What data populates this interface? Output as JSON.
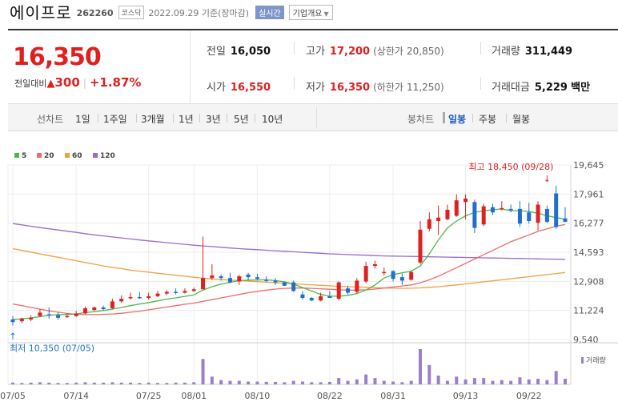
{
  "header": {
    "name": "에이프로",
    "code": "262260",
    "market": "코스닥",
    "date": "2022.09.29 기준(장마감)",
    "realtime": "실시간",
    "company_btn": "기업개요",
    "company_arrow": "▼"
  },
  "quote": {
    "price": "16,350",
    "change_label": "전일대비",
    "change_icon": "▲",
    "change_amount": "300",
    "change_pct": "+1.87%",
    "prev_label": "전일",
    "prev": "16,050",
    "open_label": "시가",
    "open": "16,550",
    "high_label": "고가",
    "high": "17,200",
    "upper_limit_label": "(상한가",
    "upper_limit": "20,850)",
    "low_label": "저가",
    "low": "16,350",
    "lower_limit_label": "(하한가",
    "lower_limit": "11,250)",
    "volume_label": "거래량",
    "volume": "311,449",
    "amount_label": "거래대금",
    "amount": "5,229",
    "amount_unit": "백만"
  },
  "toolbar": {
    "line_label": "선차트",
    "periods": [
      "1일",
      "1주일",
      "3개월",
      "1년",
      "3년",
      "5년",
      "10년"
    ],
    "candle_label": "봉차트",
    "candle_periods": [
      "일봉",
      "주봉",
      "월봉"
    ],
    "active_candle": "일봉"
  },
  "colors": {
    "up": "#e02020",
    "down": "#1f6fd1",
    "ma5": "#4cb84c",
    "ma20": "#f06a6a",
    "ma60": "#f2a040",
    "ma120": "#9a6ad0",
    "volume": "#9b7fcc"
  },
  "chart_data": {
    "type": "candlestick",
    "legend": [
      {
        "name": "5",
        "color": "#4cb84c"
      },
      {
        "name": "20",
        "color": "#f06a6a"
      },
      {
        "name": "60",
        "color": "#f2a040"
      },
      {
        "name": "120",
        "color": "#9a6ad0"
      }
    ],
    "ylim": [
      9540,
      19645
    ],
    "y_ticks": [
      19645,
      17961,
      16277,
      14593,
      12908,
      11224,
      9540
    ],
    "y_tick_labels": [
      "19,645",
      "17,961",
      "16,277",
      "14,593",
      "12,908",
      "11,224",
      "9,540"
    ],
    "x_labels": [
      {
        "i": 0,
        "label": "07/05"
      },
      {
        "i": 7,
        "label": "07/14"
      },
      {
        "i": 15,
        "label": "07/25"
      },
      {
        "i": 20,
        "label": "08/01"
      },
      {
        "i": 27,
        "label": "08/10"
      },
      {
        "i": 35,
        "label": "08/22"
      },
      {
        "i": 42,
        "label": "08/31"
      },
      {
        "i": 50,
        "label": "09/13"
      },
      {
        "i": 57,
        "label": "09/22"
      }
    ],
    "candles": [
      {
        "o": 10700,
        "h": 10900,
        "l": 10350,
        "c": 10550
      },
      {
        "o": 10600,
        "h": 10800,
        "l": 10500,
        "c": 10750
      },
      {
        "o": 10700,
        "h": 10950,
        "l": 10600,
        "c": 10800
      },
      {
        "o": 10900,
        "h": 11300,
        "l": 10850,
        "c": 11100
      },
      {
        "o": 11000,
        "h": 11400,
        "l": 10750,
        "c": 10950
      },
      {
        "o": 10950,
        "h": 11100,
        "l": 10700,
        "c": 10800
      },
      {
        "o": 10850,
        "h": 11050,
        "l": 10800,
        "c": 10900
      },
      {
        "o": 10900,
        "h": 11200,
        "l": 10850,
        "c": 11050
      },
      {
        "o": 11050,
        "h": 11450,
        "l": 11000,
        "c": 11350
      },
      {
        "o": 11250,
        "h": 11450,
        "l": 11200,
        "c": 11400
      },
      {
        "o": 11400,
        "h": 11500,
        "l": 11250,
        "c": 11300
      },
      {
        "o": 11350,
        "h": 11900,
        "l": 11300,
        "c": 11750
      },
      {
        "o": 11750,
        "h": 12100,
        "l": 11650,
        "c": 11900
      },
      {
        "o": 11950,
        "h": 12250,
        "l": 11850,
        "c": 12000
      },
      {
        "o": 12000,
        "h": 12300,
        "l": 11900,
        "c": 11950
      },
      {
        "o": 11950,
        "h": 12250,
        "l": 11850,
        "c": 12050
      },
      {
        "o": 12050,
        "h": 12350,
        "l": 12000,
        "c": 12200
      },
      {
        "o": 12200,
        "h": 12400,
        "l": 12100,
        "c": 12300
      },
      {
        "o": 12300,
        "h": 12500,
        "l": 12150,
        "c": 12250
      },
      {
        "o": 12250,
        "h": 12500,
        "l": 12200,
        "c": 12350
      },
      {
        "o": 12350,
        "h": 12550,
        "l": 12300,
        "c": 12450
      },
      {
        "o": 12450,
        "h": 15500,
        "l": 12450,
        "c": 13100
      },
      {
        "o": 13100,
        "h": 13900,
        "l": 13000,
        "c": 13250
      },
      {
        "o": 13200,
        "h": 13300,
        "l": 12950,
        "c": 13100
      },
      {
        "o": 13100,
        "h": 13400,
        "l": 12800,
        "c": 12850
      },
      {
        "o": 12900,
        "h": 13300,
        "l": 12700,
        "c": 13200
      },
      {
        "o": 13300,
        "h": 13400,
        "l": 13000,
        "c": 13150
      },
      {
        "o": 13150,
        "h": 13350,
        "l": 12950,
        "c": 13050
      },
      {
        "o": 13000,
        "h": 13200,
        "l": 12850,
        "c": 12950
      },
      {
        "o": 12950,
        "h": 13100,
        "l": 12700,
        "c": 12850
      },
      {
        "o": 12850,
        "h": 12900,
        "l": 12700,
        "c": 12650
      },
      {
        "o": 12850,
        "h": 12950,
        "l": 12300,
        "c": 12350
      },
      {
        "o": 12150,
        "h": 12350,
        "l": 11850,
        "c": 11950
      },
      {
        "o": 11950,
        "h": 12000,
        "l": 11750,
        "c": 11800
      },
      {
        "o": 11800,
        "h": 12250,
        "l": 11750,
        "c": 12050
      },
      {
        "o": 12050,
        "h": 12350,
        "l": 11950,
        "c": 11950
      },
      {
        "o": 11900,
        "h": 12900,
        "l": 11800,
        "c": 12850
      },
      {
        "o": 12500,
        "h": 12650,
        "l": 12150,
        "c": 12250
      },
      {
        "o": 12300,
        "h": 13100,
        "l": 12200,
        "c": 12950
      },
      {
        "o": 12900,
        "h": 14050,
        "l": 12800,
        "c": 13800
      },
      {
        "o": 13800,
        "h": 14100,
        "l": 13650,
        "c": 13900
      },
      {
        "o": 13450,
        "h": 13700,
        "l": 13250,
        "c": 13450
      },
      {
        "o": 13500,
        "h": 13550,
        "l": 12900,
        "c": 13050
      },
      {
        "o": 13150,
        "h": 13350,
        "l": 12700,
        "c": 12950
      },
      {
        "o": 13000,
        "h": 13500,
        "l": 12950,
        "c": 13450
      },
      {
        "o": 14000,
        "h": 16400,
        "l": 13900,
        "c": 15900
      },
      {
        "o": 15950,
        "h": 16900,
        "l": 15800,
        "c": 16500
      },
      {
        "o": 16400,
        "h": 17300,
        "l": 15600,
        "c": 16600
      },
      {
        "o": 16500,
        "h": 17350,
        "l": 16450,
        "c": 17050
      },
      {
        "o": 16700,
        "h": 17950,
        "l": 16650,
        "c": 17600
      },
      {
        "o": 17500,
        "h": 17950,
        "l": 16500,
        "c": 17700
      },
      {
        "o": 17500,
        "h": 17650,
        "l": 15700,
        "c": 16000
      },
      {
        "o": 16200,
        "h": 17400,
        "l": 16100,
        "c": 17250
      },
      {
        "o": 17200,
        "h": 17400,
        "l": 16750,
        "c": 16900
      },
      {
        "o": 17150,
        "h": 17550,
        "l": 17000,
        "c": 17150
      },
      {
        "o": 17100,
        "h": 17350,
        "l": 16900,
        "c": 17050
      },
      {
        "o": 17100,
        "h": 17550,
        "l": 16050,
        "c": 16250
      },
      {
        "o": 16900,
        "h": 17450,
        "l": 16250,
        "c": 16400
      },
      {
        "o": 16300,
        "h": 17550,
        "l": 15850,
        "c": 17350
      },
      {
        "o": 17100,
        "h": 17300,
        "l": 16300,
        "c": 16350
      },
      {
        "o": 18000,
        "h": 18450,
        "l": 15950,
        "c": 16050
      },
      {
        "o": 16550,
        "h": 17200,
        "l": 16350,
        "c": 16350
      }
    ],
    "ma5": [
      10700,
      10740,
      10790,
      10860,
      10950,
      10980,
      10990,
      11020,
      11100,
      11160,
      11220,
      11300,
      11400,
      11500,
      11600,
      11680,
      11780,
      11880,
      11950,
      12040,
      12120,
      12400,
      12600,
      12750,
      12850,
      12950,
      12980,
      12990,
      13000,
      12950,
      12880,
      12750,
      12550,
      12350,
      12150,
      12050,
      12050,
      12100,
      12200,
      12400,
      12700,
      13100,
      13300,
      13400,
      13500,
      13800,
      14500,
      15300,
      16000,
      16400,
      16700,
      16900,
      17000,
      17050,
      17100,
      17000,
      17000,
      16950,
      16850,
      16700,
      16600,
      16500
    ],
    "ma20": [
      11600,
      11500,
      11400,
      11300,
      11200,
      11120,
      11050,
      11000,
      10980,
      10980,
      11000,
      11020,
      11060,
      11120,
      11180,
      11260,
      11340,
      11420,
      11500,
      11580,
      11650,
      11750,
      11850,
      11950,
      12050,
      12150,
      12250,
      12330,
      12400,
      12460,
      12500,
      12520,
      12520,
      12500,
      12480,
      12450,
      12420,
      12400,
      12400,
      12420,
      12460,
      12520,
      12580,
      12640,
      12700,
      12820,
      13000,
      13200,
      13450,
      13700,
      13950,
      14200,
      14450,
      14700,
      14950,
      15200,
      15400,
      15600,
      15800,
      15950,
      16100,
      16200
    ],
    "ma60": [
      14800,
      14700,
      14600,
      14500,
      14400,
      14300,
      14200,
      14100,
      14000,
      13900,
      13800,
      13720,
      13640,
      13560,
      13500,
      13440,
      13380,
      13320,
      13260,
      13200,
      13140,
      13090,
      13050,
      13010,
      12980,
      12950,
      12920,
      12890,
      12860,
      12830,
      12800,
      12770,
      12740,
      12710,
      12680,
      12650,
      12620,
      12600,
      12580,
      12560,
      12540,
      12520,
      12510,
      12500,
      12510,
      12530,
      12560,
      12600,
      12650,
      12700,
      12760,
      12820,
      12880,
      12940,
      13000,
      13060,
      13120,
      13180,
      13240,
      13300,
      13360,
      13420
    ],
    "ma120": [
      16250,
      16180,
      16100,
      16020,
      15950,
      15880,
      15810,
      15740,
      15670,
      15600,
      15540,
      15480,
      15420,
      15360,
      15300,
      15250,
      15200,
      15150,
      15100,
      15050,
      15000,
      14960,
      14920,
      14880,
      14840,
      14800,
      14770,
      14740,
      14710,
      14680,
      14650,
      14620,
      14590,
      14560,
      14530,
      14500,
      14480,
      14460,
      14440,
      14420,
      14400,
      14380,
      14370,
      14360,
      14350,
      14340,
      14330,
      14320,
      14310,
      14300,
      14290,
      14280,
      14270,
      14260,
      14250,
      14240,
      14230,
      14220,
      14210,
      14200,
      14190,
      14180
    ],
    "volume": [
      5,
      4,
      5,
      6,
      5,
      4,
      4,
      5,
      6,
      5,
      5,
      6,
      5,
      5,
      4,
      5,
      4,
      4,
      5,
      5,
      6,
      72,
      22,
      12,
      10,
      10,
      8,
      8,
      7,
      7,
      6,
      10,
      8,
      6,
      6,
      7,
      18,
      10,
      14,
      28,
      18,
      10,
      8,
      6,
      10,
      100,
      55,
      25,
      10,
      22,
      14,
      18,
      18,
      10,
      12,
      10,
      20,
      14,
      16,
      12,
      38,
      16
    ],
    "volume_label": "거래량",
    "max_label": "최고 18,450 (09/28)",
    "max_arrow": "↓",
    "min_label": "최저 10,350 (07/05)",
    "min_arrow": "↑"
  }
}
